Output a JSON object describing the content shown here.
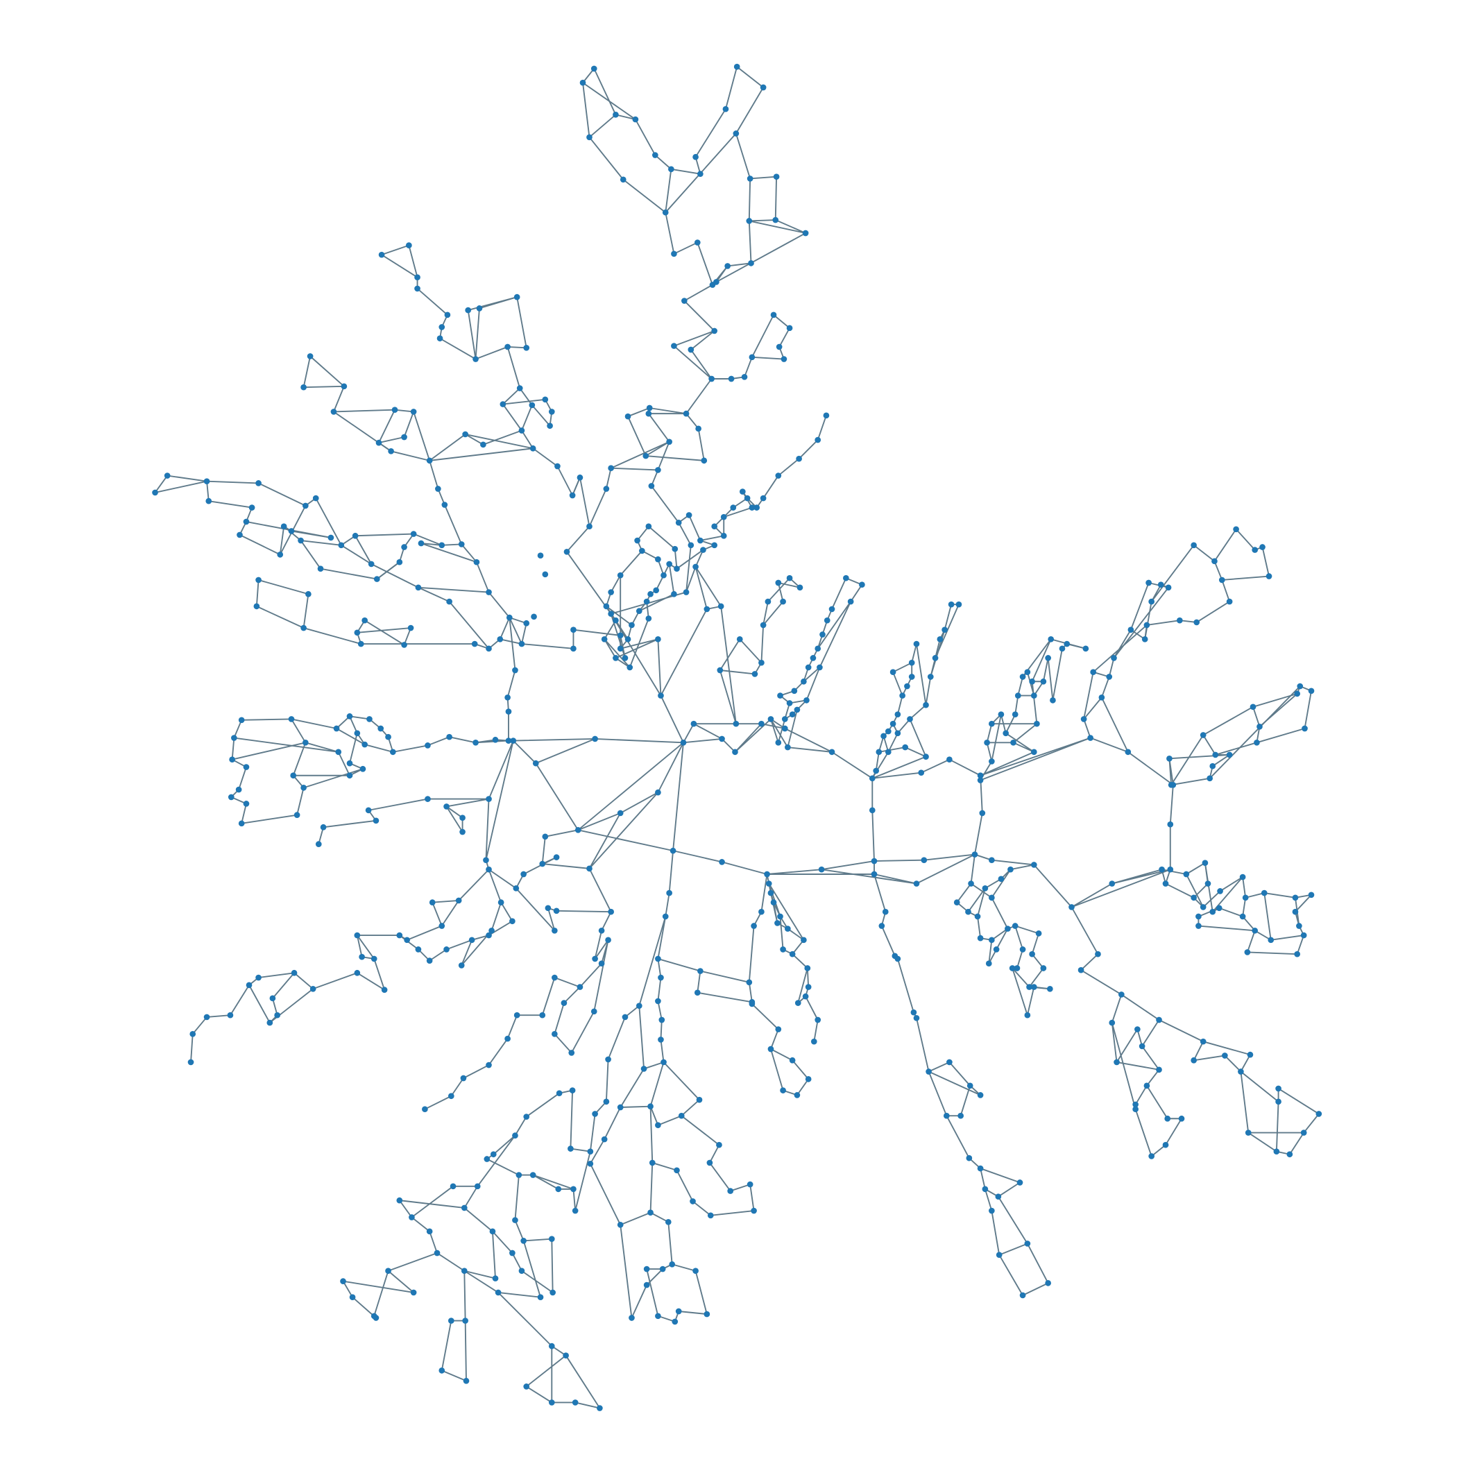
{
  "graph": {
    "node_color": "#1f77b4",
    "edge_color": "#5f7a8a",
    "background": "#ffffff",
    "axes_visible": false,
    "labels_visible": false
  }
}
